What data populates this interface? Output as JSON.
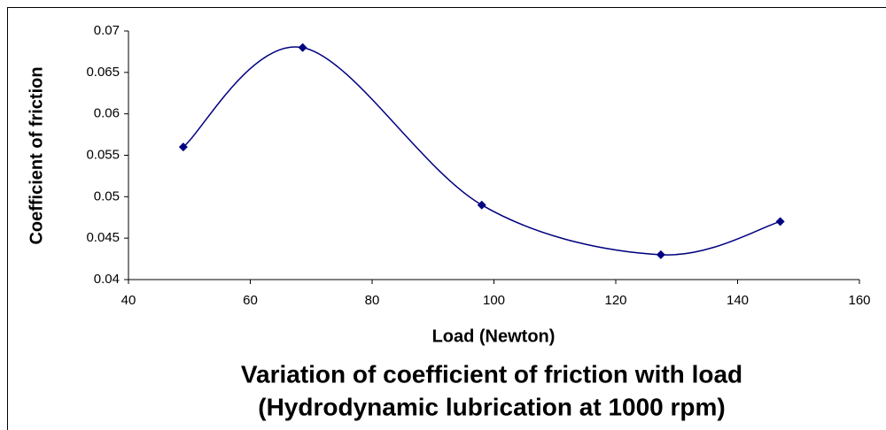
{
  "chart_data": {
    "type": "line",
    "title": "Variation of coefficient of friction with load",
    "subtitle": "(Hydrodynamic lubrication at 1000 rpm)",
    "x_label": "Load (Newton)",
    "y_label": "Coefficient of friction",
    "x": [
      49,
      68.6,
      98,
      127.4,
      147
    ],
    "series": [
      {
        "name": "Coefficient of friction",
        "color": "#000080",
        "values": [
          0.056,
          0.068,
          0.049,
          0.043,
          0.047
        ]
      }
    ],
    "xlim": [
      40,
      160
    ],
    "xticks": [
      40,
      60,
      80,
      100,
      120,
      140,
      160
    ],
    "ylim": [
      0.04,
      0.07
    ],
    "yticks": [
      0.04,
      0.045,
      0.05,
      0.055,
      0.06,
      0.065,
      0.07
    ],
    "smooth": true,
    "grid": false
  }
}
